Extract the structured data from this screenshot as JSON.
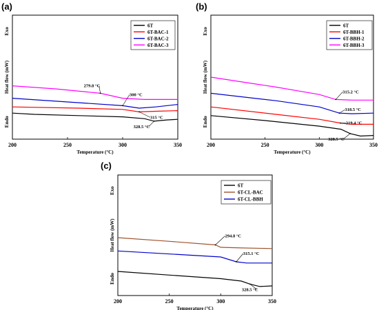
{
  "chart_data": [
    {
      "panel_label": "(a)",
      "type": "line",
      "xlabel": "Temperature (°C)",
      "ylabel": "Heat flow (mW)",
      "top_label": "Exo",
      "bottom_label": "Endo",
      "xlim": [
        200,
        350
      ],
      "ylim": [
        0,
        100
      ],
      "xticks": [
        "200",
        "250",
        "300",
        "350"
      ],
      "legend_position": "top-right",
      "series": [
        {
          "name": "6T",
          "color": "#000000",
          "x": [
            200,
            220,
            260,
            300,
            320,
            328.5,
            340,
            350
          ],
          "y": [
            21,
            20,
            19,
            18,
            16.5,
            14.5,
            15.5,
            16
          ]
        },
        {
          "name": "6T-BAC-1",
          "color": "#ff0000",
          "x": [
            200,
            260,
            300,
            315,
            330,
            350
          ],
          "y": [
            26,
            25,
            24,
            22,
            22.5,
            23
          ]
        },
        {
          "name": "6T-BAC-2",
          "color": "#0000cc",
          "x": [
            200,
            250,
            300,
            315,
            330,
            350
          ],
          "y": [
            33,
            30,
            27,
            25,
            26,
            28
          ]
        },
        {
          "name": "6T-BAC-3",
          "color": "#ff00ff",
          "x": [
            200,
            240,
            279.8,
            300,
            320,
            350
          ],
          "y": [
            43,
            40.5,
            37,
            33,
            32,
            32
          ]
        }
      ],
      "annotations": [
        {
          "text": "279.8 °C",
          "x": 279.8,
          "y": 37
        },
        {
          "text": "300 °C",
          "x": 300,
          "y": 27
        },
        {
          "text": "328.5 °C",
          "x": 328.5,
          "y": 14.5
        },
        {
          "text": "315 °C",
          "x": 315,
          "y": 22
        }
      ]
    },
    {
      "panel_label": "(b)",
      "type": "line",
      "xlabel": "Temperature (°C)",
      "ylabel": "Heat flow (mW)",
      "top_label": "Exo",
      "bottom_label": "Endo",
      "xlim": [
        200,
        350
      ],
      "ylim": [
        0,
        100
      ],
      "xticks": [
        "200",
        "250",
        "300",
        "350"
      ],
      "legend_position": "top-right",
      "series": [
        {
          "name": "6T",
          "color": "#000000",
          "x": [
            200,
            250,
            300,
            320,
            328.5,
            338,
            350
          ],
          "y": [
            19,
            15,
            10.5,
            8,
            4.5,
            2.5,
            3
          ]
        },
        {
          "name": "6T-BBH-1",
          "color": "#ff0000",
          "x": [
            200,
            260,
            300,
            319.4,
            330,
            350
          ],
          "y": [
            26,
            20,
            16,
            13,
            12,
            12
          ]
        },
        {
          "name": "6T-BBH-2",
          "color": "#0000cc",
          "x": [
            200,
            260,
            300,
            318.5,
            330,
            350
          ],
          "y": [
            37,
            31,
            26,
            21,
            20.5,
            21
          ]
        },
        {
          "name": "6T-BBH-3",
          "color": "#ff00ff",
          "x": [
            200,
            260,
            300,
            315.2,
            330,
            350
          ],
          "y": [
            50,
            42,
            36,
            32,
            31.5,
            31.5
          ]
        }
      ],
      "annotations": [
        {
          "text": "315.2 °C",
          "x": 315.2,
          "y": 32
        },
        {
          "text": "318.5 °C",
          "x": 318.5,
          "y": 21
        },
        {
          "text": "319.4 °C",
          "x": 319.4,
          "y": 13
        },
        {
          "text": "328.5 °C",
          "x": 328.5,
          "y": 4.5
        }
      ]
    },
    {
      "panel_label": "(c)",
      "type": "line",
      "xlabel": "Temperature (°C)",
      "ylabel": "Heat flow (mW)",
      "top_label": "Exo",
      "bottom_label": "Endo",
      "xlim": [
        200,
        350
      ],
      "ylim": [
        0,
        100
      ],
      "xticks": [
        "200",
        "250",
        "300",
        "350"
      ],
      "legend_position": "top-right",
      "series": [
        {
          "name": "6T",
          "color": "#000000",
          "x": [
            200,
            250,
            300,
            320,
            328.5,
            338,
            350
          ],
          "y": [
            20,
            17,
            14,
            12,
            9.5,
            7.5,
            8
          ]
        },
        {
          "name": "6T-CL-BAC",
          "color": "#a0522d",
          "x": [
            200,
            250,
            294.8,
            300,
            320,
            350
          ],
          "y": [
            48,
            45,
            42,
            40,
            39.5,
            39
          ]
        },
        {
          "name": "6T-CL-BBH",
          "color": "#0000cc",
          "x": [
            200,
            260,
            300,
            315.1,
            325,
            350
          ],
          "y": [
            37,
            34,
            32,
            28,
            27,
            27
          ]
        }
      ],
      "annotations": [
        {
          "text": "294.8 °C",
          "x": 294.8,
          "y": 42
        },
        {
          "text": "315.1 °C",
          "x": 315.1,
          "y": 28
        },
        {
          "text": "328.5 °C",
          "x": 328.5,
          "y": 9.5
        }
      ]
    }
  ]
}
